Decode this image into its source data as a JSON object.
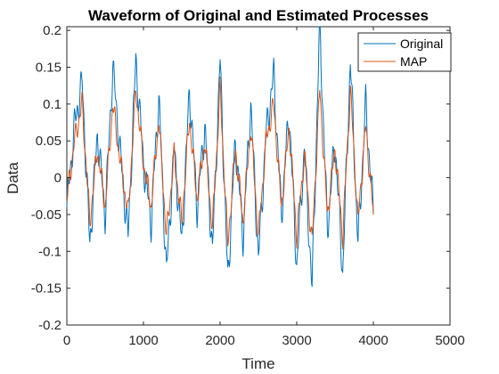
{
  "colors": {
    "original": "#0072BD",
    "map": "#D95319",
    "axis": "#262626"
  },
  "chart_data": {
    "type": "line",
    "title": "Waveform of Original and Estimated Processes",
    "xlabel": "Time",
    "ylabel": "Data",
    "xlim": [
      0,
      5000
    ],
    "ylim": [
      -0.2,
      0.205
    ],
    "xticks": [
      0,
      1000,
      2000,
      3000,
      4000,
      5000
    ],
    "xtick_labels": [
      "0",
      "1000",
      "2000",
      "3000",
      "4000",
      "5000"
    ],
    "yticks": [
      -0.2,
      -0.15,
      -0.1,
      -0.05,
      0,
      0.05,
      0.1,
      0.15,
      0.2
    ],
    "ytick_labels": [
      "-0.2",
      "-0.15",
      "-0.1",
      "-0.05",
      "0",
      "0.05",
      "0.1",
      "0.15",
      "0.2"
    ],
    "grid": false,
    "legend": "top-right",
    "series": [
      {
        "name": "Original",
        "x": [
          0,
          100,
          200,
          300,
          400,
          500,
          600,
          700,
          800,
          900,
          1000,
          1100,
          1200,
          1300,
          1400,
          1500,
          1600,
          1700,
          1800,
          1900,
          2000,
          2100,
          2200,
          2300,
          2400,
          2500,
          2600,
          2700,
          2800,
          2900,
          3000,
          3100,
          3200,
          3300,
          3400,
          3500,
          3600,
          3700,
          3800,
          3900,
          4000
        ],
        "values": [
          -0.04,
          0.07,
          0.13,
          -0.09,
          0.06,
          -0.05,
          0.15,
          0.03,
          -0.08,
          0.16,
          0.02,
          -0.06,
          0.11,
          -0.13,
          0.04,
          -0.09,
          0.12,
          -0.04,
          0.07,
          -0.1,
          0.16,
          -0.14,
          0.05,
          -0.08,
          0.1,
          -0.11,
          0.06,
          0.14,
          -0.05,
          0.09,
          -0.12,
          0.04,
          -0.15,
          0.21,
          -0.07,
          0.05,
          -0.13,
          0.16,
          -0.09,
          0.1,
          -0.05
        ]
      },
      {
        "name": "MAP",
        "x": [
          0,
          100,
          200,
          300,
          400,
          500,
          600,
          700,
          800,
          900,
          1000,
          1100,
          1200,
          1300,
          1400,
          1500,
          1600,
          1700,
          1800,
          1900,
          2000,
          2100,
          2200,
          2300,
          2400,
          2500,
          2600,
          2700,
          2800,
          2900,
          3000,
          3100,
          3200,
          3300,
          3400,
          3500,
          3600,
          3700,
          3800,
          3900,
          4000
        ],
        "values": [
          -0.03,
          0.05,
          0.1,
          -0.06,
          0.04,
          -0.04,
          0.1,
          0.02,
          -0.05,
          0.12,
          0.02,
          -0.04,
          0.08,
          -0.08,
          0.03,
          -0.06,
          0.08,
          -0.03,
          0.05,
          -0.07,
          0.12,
          -0.09,
          0.04,
          -0.06,
          0.07,
          -0.08,
          0.05,
          0.1,
          -0.04,
          0.07,
          -0.08,
          0.03,
          -0.09,
          0.12,
          -0.05,
          0.04,
          -0.08,
          0.12,
          -0.06,
          0.07,
          -0.05
        ]
      }
    ]
  }
}
